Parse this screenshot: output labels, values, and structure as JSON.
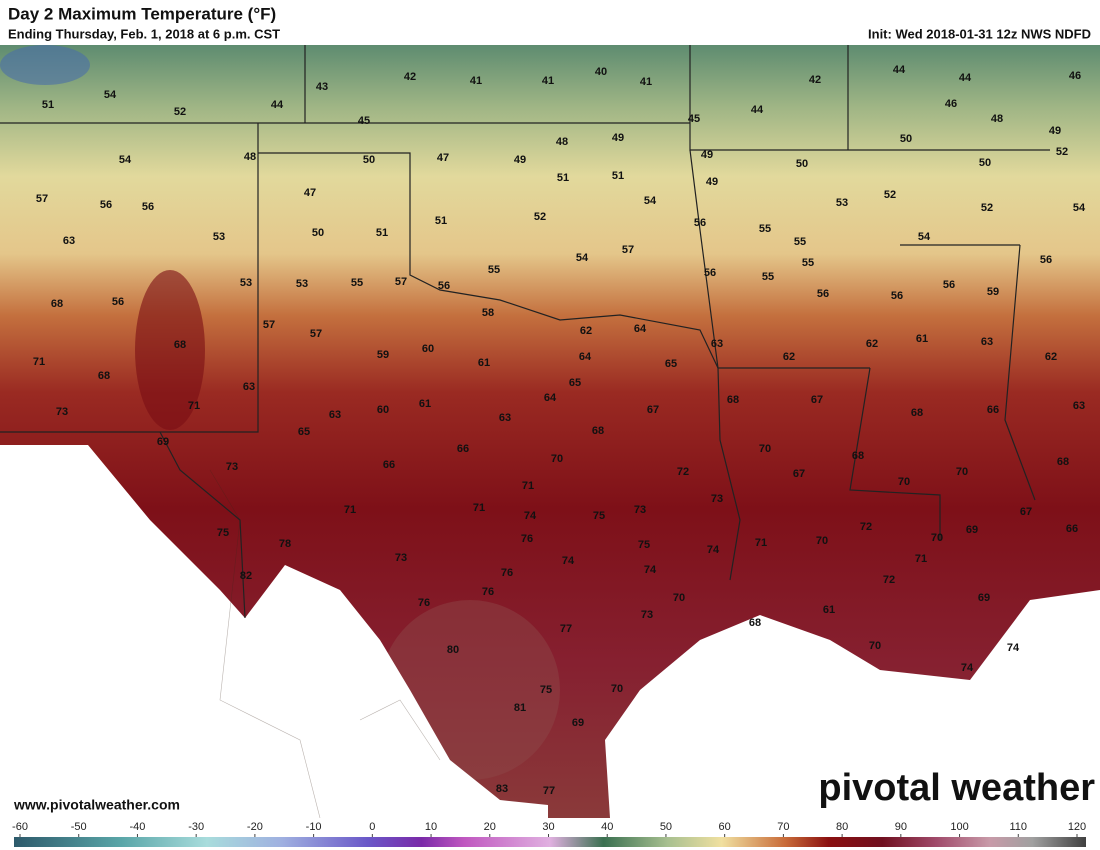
{
  "header": {
    "title": "Day 2 Maximum Temperature (°F)",
    "subtitle": "Ending Thursday, Feb. 1, 2018 at 6 p.m. CST",
    "init": "Init: Wed 2018-01-31 12z NWS NDFD"
  },
  "footer": {
    "website": "www.pivotalweather.com",
    "logo": "pivotal weather"
  },
  "map": {
    "temperature_labels": [
      51,
      54,
      52,
      44,
      43,
      42,
      41,
      41,
      40,
      41,
      42,
      44,
      44,
      46,
      45,
      45,
      44,
      46,
      48,
      49,
      50,
      52,
      48,
      54,
      50,
      47,
      49,
      48,
      49,
      49,
      50,
      50,
      57,
      56,
      56,
      47,
      51,
      51,
      49,
      52,
      53,
      52,
      54,
      53,
      50,
      51,
      51,
      52,
      54,
      56,
      55,
      55,
      63,
      53,
      53,
      55,
      57,
      56,
      55,
      54,
      57,
      56,
      55,
      55,
      56,
      56,
      54,
      56,
      59,
      56,
      68,
      56,
      57,
      57,
      58,
      62,
      64,
      63,
      62,
      62,
      61,
      63,
      62,
      71,
      68,
      68,
      59,
      60,
      61,
      64,
      65,
      65,
      63,
      71,
      73,
      63,
      60,
      61,
      64,
      63,
      67,
      68,
      67,
      68,
      66,
      63,
      65,
      68,
      69,
      66,
      70,
      70,
      68,
      66,
      73,
      72,
      67,
      70,
      68,
      70,
      71,
      73,
      71,
      71,
      74,
      75,
      73,
      72,
      69,
      67,
      66,
      75,
      76,
      75,
      70,
      71,
      70,
      74,
      78,
      73,
      71,
      74,
      76,
      82,
      74,
      72,
      76,
      70,
      69,
      61,
      76,
      73,
      68,
      77,
      70,
      74,
      80,
      74,
      75,
      70,
      81,
      69,
      83,
      77
    ],
    "colorbar_ticks": [
      -60,
      -50,
      -40,
      -30,
      -20,
      -10,
      0,
      10,
      20,
      30,
      40,
      50,
      60,
      70,
      80,
      90,
      100,
      110,
      120
    ],
    "colorbar_lim": [
      -60,
      120
    ]
  }
}
